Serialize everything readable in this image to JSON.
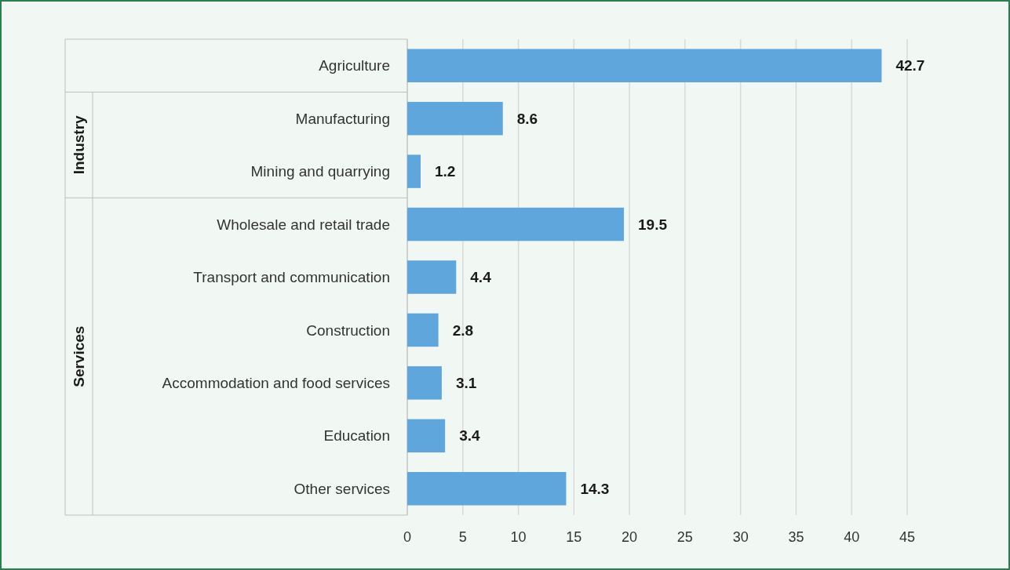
{
  "chart_data": {
    "type": "bar",
    "orientation": "horizontal",
    "categories": [
      "Agriculture",
      "Manufacturing",
      "Mining and quarrying",
      "Wholesale and retail trade",
      "Transport and communication",
      "Construction",
      "Accommodation and food services",
      "Education",
      "Other services"
    ],
    "values": [
      42.7,
      8.6,
      1.2,
      19.5,
      4.4,
      2.8,
      3.1,
      3.4,
      14.3
    ],
    "color": "#5fa6dc",
    "xlim": [
      0,
      45
    ],
    "xticks": [
      0,
      5,
      10,
      15,
      20,
      25,
      30,
      35,
      40,
      45
    ],
    "grid": "x",
    "data_labels": true,
    "annotations": [
      "Industry",
      "Services"
    ]
  }
}
